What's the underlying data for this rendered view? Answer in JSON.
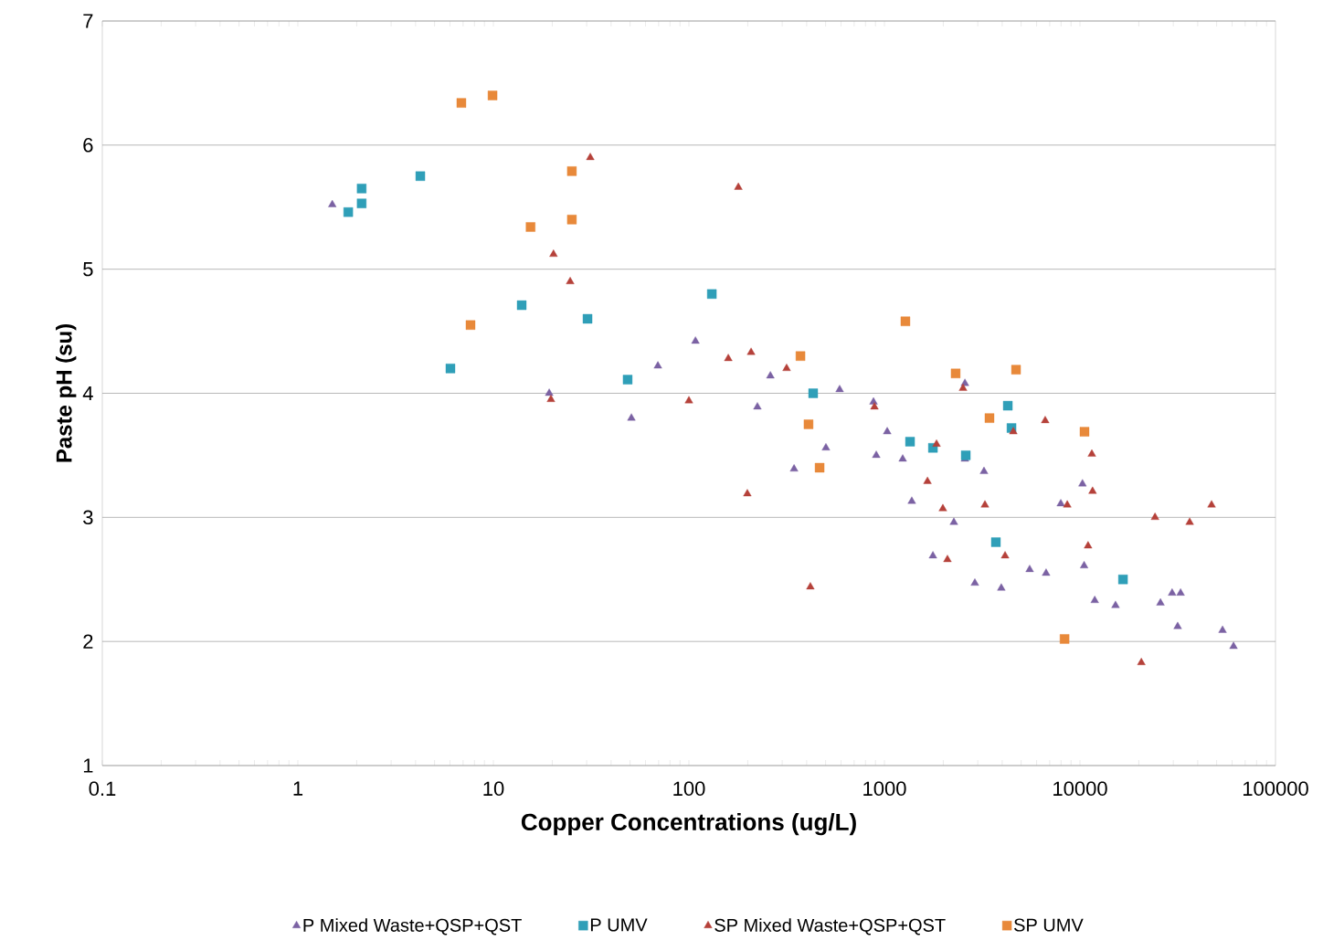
{
  "chart_data": {
    "type": "scatter",
    "xlabel": "Copper Concentrations (ug/L)",
    "ylabel": "Paste pH (su)",
    "log": "x",
    "xlim": [
      0.1,
      100000
    ],
    "ylim": [
      1,
      7
    ],
    "xticks": [
      0.1,
      1,
      10,
      100,
      1000,
      10000,
      100000
    ],
    "yticks": [
      1,
      2,
      3,
      4,
      5,
      6,
      7
    ],
    "grid": "y",
    "legend": "bottom",
    "series": [
      {
        "name": "P Mixed Waste+QSP+QST",
        "color": "#7b62a3",
        "marker": "triangle",
        "x": [
          1.5,
          19.3,
          50.8,
          69.4,
          108,
          224,
          261,
          345,
          502,
          590,
          879,
          908,
          1033,
          1240,
          1380,
          1770,
          2265,
          2580,
          2580,
          2900,
          3230,
          3960,
          5530,
          6710,
          7980,
          10300,
          10500,
          11900,
          15200,
          25800,
          29600,
          31600,
          32700,
          53600,
          61000
        ],
        "values": [
          5.52,
          4.0,
          3.8,
          4.22,
          4.42,
          3.89,
          4.14,
          3.39,
          3.56,
          4.03,
          3.93,
          3.5,
          3.69,
          3.47,
          3.13,
          2.69,
          2.96,
          4.08,
          3.47,
          2.47,
          3.37,
          2.43,
          2.58,
          2.55,
          3.11,
          3.27,
          2.61,
          2.33,
          2.29,
          2.31,
          2.39,
          2.12,
          2.39,
          2.09,
          1.96
        ]
      },
      {
        "name": "P UMV",
        "color": "#2f9fb8",
        "marker": "square",
        "x": [
          1.81,
          2.12,
          2.12,
          4.23,
          6.03,
          13.96,
          30.3,
          48.6,
          131,
          432,
          1352,
          1770,
          2606,
          3715,
          4275,
          4465,
          16600
        ],
        "values": [
          5.46,
          5.53,
          5.65,
          5.75,
          4.2,
          4.71,
          4.6,
          4.11,
          4.8,
          4.0,
          3.61,
          3.56,
          3.5,
          2.8,
          3.9,
          3.72,
          2.5
        ]
      },
      {
        "name": "SP Mixed Waste+QSP+QST",
        "color": "#b5413a",
        "marker": "triangle",
        "x": [
          19.7,
          20.3,
          24.7,
          31.3,
          100,
          159,
          179,
          199,
          208,
          316,
          418,
          889,
          1660,
          1847,
          1990,
          2100,
          2523,
          3266,
          4140,
          4560,
          6640,
          8610,
          11000,
          11500,
          11600,
          20600,
          24200,
          36400,
          47100
        ],
        "values": [
          3.95,
          5.12,
          4.9,
          5.9,
          3.94,
          4.28,
          5.66,
          3.19,
          4.33,
          4.2,
          2.44,
          3.89,
          3.29,
          3.59,
          3.07,
          2.66,
          4.04,
          3.1,
          2.69,
          3.69,
          3.78,
          3.1,
          2.77,
          3.51,
          3.21,
          1.83,
          3.0,
          2.96,
          3.1
        ]
      },
      {
        "name": "SP UMV",
        "color": "#e8893a",
        "marker": "square",
        "x": [
          6.86,
          7.64,
          9.9,
          15.5,
          25.2,
          25.2,
          372,
          409,
          466,
          1280,
          2313,
          3445,
          4710,
          8340,
          10550
        ],
        "values": [
          6.34,
          4.55,
          6.4,
          5.34,
          5.79,
          5.4,
          4.3,
          3.75,
          3.4,
          4.58,
          4.16,
          3.8,
          4.19,
          2.02,
          3.69
        ]
      }
    ]
  }
}
